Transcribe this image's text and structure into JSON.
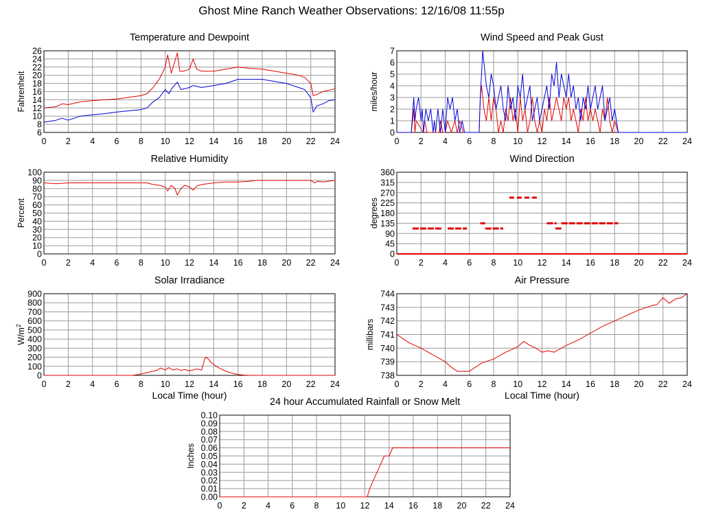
{
  "page_title": "Ghost Mine Ranch Weather Observations: 12/16/08 11:55p",
  "colors": {
    "primary": "#e00000",
    "secondary": "#0000d8",
    "grid": "#9a9a9a",
    "frame": "#000000"
  },
  "chart_data": [
    {
      "id": "temp",
      "type": "line",
      "title": "Temperature and Dewpoint",
      "ylabel": "Fahrenheit",
      "xlabel": "",
      "x_ticks": [
        "0",
        "2",
        "4",
        "6",
        "8",
        "10",
        "12",
        "14",
        "16",
        "18",
        "20",
        "22",
        "24"
      ],
      "y_ticks": [
        "6",
        "8",
        "10",
        "12",
        "14",
        "16",
        "18",
        "20",
        "22",
        "24",
        "26"
      ],
      "xlim": [
        0,
        24
      ],
      "ylim": [
        6,
        26
      ],
      "series": [
        {
          "name": "Temperature",
          "color": "#e00000",
          "x": [
            0,
            1,
            1.5,
            2,
            3,
            4,
            5,
            6,
            7,
            8,
            8.5,
            9,
            9.5,
            10,
            10.2,
            10.5,
            11,
            11.2,
            11.5,
            12,
            12.3,
            12.6,
            13,
            14,
            15,
            16,
            17,
            18,
            19,
            20,
            20.5,
            21,
            21.5,
            22,
            22.2,
            22.5,
            23,
            24
          ],
          "y": [
            12,
            12.3,
            13,
            12.8,
            13.5,
            13.8,
            14,
            14.2,
            14.6,
            15,
            15.5,
            17,
            19,
            22,
            25,
            20.5,
            25.5,
            21,
            21,
            21.5,
            24,
            21.5,
            21,
            21,
            21.5,
            22,
            21.7,
            21.5,
            21,
            20.5,
            20.3,
            20,
            19.5,
            18,
            15,
            15.3,
            16,
            16.7
          ]
        },
        {
          "name": "Dewpoint",
          "color": "#0000d8",
          "x": [
            0,
            1,
            1.5,
            2,
            3,
            4,
            5,
            6,
            7,
            8,
            8.5,
            9,
            9.5,
            10,
            10.3,
            10.6,
            11,
            11.3,
            12,
            12.3,
            13,
            14,
            15,
            16,
            17,
            18,
            19,
            20,
            20.5,
            21,
            21.5,
            22,
            22.2,
            22.5,
            23,
            23.5,
            24
          ],
          "y": [
            8.5,
            9,
            9.5,
            9,
            10,
            10.3,
            10.6,
            11,
            11.3,
            11.6,
            12,
            13.5,
            14.5,
            16.5,
            15.5,
            17,
            18.3,
            16.5,
            17,
            17.5,
            17,
            17.5,
            18,
            19,
            19,
            19,
            18.5,
            18,
            17.5,
            17,
            16.5,
            14.5,
            11,
            12.5,
            13,
            13.8,
            14
          ]
        }
      ]
    },
    {
      "id": "wind",
      "type": "line",
      "title": "Wind Speed and Peak Gust",
      "ylabel": "miles/hour",
      "xlabel": "",
      "x_ticks": [
        "0",
        "2",
        "4",
        "6",
        "8",
        "10",
        "12",
        "14",
        "16",
        "18",
        "20",
        "22",
        "24"
      ],
      "y_ticks": [
        "0",
        "1",
        "2",
        "3",
        "4",
        "5",
        "6",
        "7"
      ],
      "xlim": [
        0,
        24
      ],
      "ylim": [
        0,
        7
      ],
      "series": [
        {
          "name": "Wind Speed",
          "color": "#e00000",
          "x": [
            0,
            1.2,
            1.3,
            1.4,
            1.5,
            1.6,
            2.2,
            2.3,
            2.5,
            3.5,
            3.6,
            3.8,
            4.0,
            4.2,
            4.5,
            4.8,
            5.0,
            5.2,
            5.5,
            6.8,
            6.9,
            7.0,
            7.2,
            7.4,
            7.6,
            7.8,
            8.0,
            8.2,
            8.4,
            8.6,
            8.8,
            9.0,
            9.2,
            9.4,
            9.6,
            9.8,
            10.0,
            10.2,
            10.4,
            10.6,
            10.8,
            11.0,
            11.2,
            11.4,
            11.6,
            11.8,
            12.0,
            12.2,
            12.4,
            12.6,
            12.8,
            13.0,
            13.2,
            13.4,
            13.6,
            13.8,
            14.0,
            14.2,
            14.4,
            14.6,
            14.8,
            15.0,
            15.2,
            15.4,
            15.6,
            15.8,
            16.0,
            16.2,
            16.4,
            16.6,
            16.8,
            17.0,
            17.2,
            17.4,
            17.6,
            17.8,
            18.0,
            18.3,
            24
          ],
          "y": [
            0,
            0,
            1,
            2,
            0,
            1,
            0,
            1,
            0,
            0,
            1,
            0,
            0,
            1,
            0,
            1,
            0,
            1,
            0,
            0,
            3,
            4,
            2,
            1,
            3,
            1,
            3,
            2,
            0,
            1,
            0,
            2,
            1,
            3,
            1,
            2,
            0,
            3,
            1,
            2,
            0,
            1,
            3,
            1,
            0,
            1,
            0,
            2,
            1,
            3,
            1,
            2,
            3,
            2,
            1,
            3,
            2,
            3,
            1,
            2,
            1,
            0,
            2,
            1,
            3,
            1,
            2,
            1,
            2,
            1,
            0,
            2,
            1,
            3,
            1,
            0,
            1,
            0,
            0
          ]
        },
        {
          "name": "Peak Gust",
          "color": "#0000d8",
          "x": [
            0,
            1.2,
            1.4,
            1.5,
            1.6,
            1.8,
            2.0,
            2.1,
            2.2,
            2.3,
            2.4,
            2.6,
            2.8,
            3.0,
            3.1,
            3.2,
            3.4,
            3.6,
            3.8,
            4.0,
            4.2,
            4.4,
            4.6,
            4.8,
            5.0,
            5.2,
            5.4,
            5.6,
            5.8,
            6.8,
            6.9,
            7.0,
            7.1,
            7.2,
            7.4,
            7.6,
            7.8,
            8.0,
            8.2,
            8.4,
            8.6,
            8.8,
            9.0,
            9.2,
            9.4,
            9.6,
            9.8,
            10.0,
            10.2,
            10.4,
            10.6,
            10.8,
            11.0,
            11.2,
            11.4,
            11.6,
            11.8,
            12.0,
            12.2,
            12.4,
            12.6,
            12.8,
            13.0,
            13.2,
            13.4,
            13.6,
            13.8,
            14.0,
            14.2,
            14.4,
            14.6,
            14.8,
            15.0,
            15.2,
            15.4,
            15.6,
            15.8,
            16.0,
            16.2,
            16.4,
            16.6,
            16.8,
            17.0,
            17.2,
            17.4,
            17.6,
            17.8,
            18.0,
            18.3,
            24
          ],
          "y": [
            0,
            0,
            3,
            1,
            2,
            3,
            1,
            2,
            0,
            1,
            2,
            1,
            2,
            0,
            1,
            0,
            2,
            0,
            2,
            0,
            3,
            2,
            3,
            1,
            2,
            0,
            1,
            0,
            0,
            0,
            3,
            5,
            7,
            6,
            4,
            3,
            5,
            4,
            2,
            3,
            4,
            2,
            1,
            4,
            2,
            3,
            1,
            4,
            3,
            5,
            2,
            3,
            4,
            1,
            2,
            3,
            1,
            2,
            3,
            4,
            2,
            5,
            4,
            6,
            3,
            5,
            4,
            3,
            5,
            3,
            4,
            2,
            3,
            1,
            3,
            2,
            4,
            2,
            3,
            4,
            2,
            3,
            4,
            1,
            2,
            3,
            1,
            2,
            0,
            0
          ]
        }
      ]
    },
    {
      "id": "humidity",
      "type": "line",
      "title": "Relative Humidity",
      "ylabel": "Percent",
      "xlabel": "",
      "x_ticks": [
        "0",
        "2",
        "4",
        "6",
        "8",
        "10",
        "12",
        "14",
        "16",
        "18",
        "20",
        "22",
        "24"
      ],
      "y_ticks": [
        "0",
        "10",
        "20",
        "30",
        "40",
        "50",
        "60",
        "70",
        "80",
        "90",
        "100"
      ],
      "xlim": [
        0,
        24
      ],
      "ylim": [
        0,
        100
      ],
      "series": [
        {
          "name": "Relative Humidity",
          "color": "#e00000",
          "x": [
            0,
            1,
            2,
            4,
            6,
            8,
            8.5,
            9,
            9.5,
            10,
            10.2,
            10.5,
            10.8,
            11,
            11.3,
            11.6,
            12,
            12.3,
            12.6,
            13,
            14,
            15,
            16,
            17,
            17.5,
            18,
            20,
            21,
            22,
            22.3,
            22.6,
            23,
            24
          ],
          "y": [
            87,
            86,
            87,
            87,
            87,
            87,
            87,
            85,
            84,
            82,
            77,
            84,
            80,
            72,
            80,
            84,
            82,
            78,
            83,
            85,
            87,
            88,
            88,
            89,
            90,
            90,
            90,
            90,
            90,
            87,
            89,
            88,
            90
          ]
        }
      ]
    },
    {
      "id": "direction",
      "type": "scatter",
      "title": "Wind Direction",
      "ylabel": "degrees",
      "xlabel": "",
      "x_ticks": [
        "0",
        "2",
        "4",
        "6",
        "8",
        "10",
        "12",
        "14",
        "16",
        "18",
        "20",
        "22",
        "24"
      ],
      "y_ticks": [
        "0",
        "45",
        "90",
        "135",
        "180",
        "225",
        "270",
        "315",
        "360"
      ],
      "xlim": [
        0,
        24
      ],
      "ylim": [
        0,
        360
      ],
      "segments": [
        {
          "x1": 0,
          "x2": 24,
          "y": 0
        },
        {
          "x1": 1.3,
          "x2": 3.8,
          "y": 112
        },
        {
          "x1": 4.2,
          "x2": 5.8,
          "y": 112
        },
        {
          "x1": 6.9,
          "x2": 7.3,
          "y": 135
        },
        {
          "x1": 7.3,
          "x2": 8.8,
          "y": 112
        },
        {
          "x1": 9.3,
          "x2": 11.8,
          "y": 248
        },
        {
          "x1": 12.4,
          "x2": 13.2,
          "y": 135
        },
        {
          "x1": 13.1,
          "x2": 13.6,
          "y": 112
        },
        {
          "x1": 13.6,
          "x2": 18.3,
          "y": 135
        }
      ]
    },
    {
      "id": "solar",
      "type": "line",
      "title": "Solar Irradiance",
      "ylabel": "W/m",
      "ylabel_sup": "2",
      "xlabel": "Local Time (hour)",
      "x_ticks": [
        "0",
        "2",
        "4",
        "6",
        "8",
        "10",
        "12",
        "14",
        "16",
        "18",
        "20",
        "22",
        "24"
      ],
      "y_ticks": [
        "0",
        "100",
        "200",
        "300",
        "400",
        "500",
        "600",
        "700",
        "800",
        "900"
      ],
      "xlim": [
        0,
        24
      ],
      "ylim": [
        0,
        900
      ],
      "series": [
        {
          "name": "Solar Irradiance",
          "color": "#e00000",
          "x": [
            0,
            7.3,
            7.8,
            8.3,
            8.8,
            9.3,
            9.6,
            10,
            10.3,
            10.6,
            11,
            11.3,
            11.6,
            12,
            12.3,
            12.6,
            13,
            13.3,
            13.5,
            13.8,
            14.2,
            14.6,
            15,
            15.5,
            16,
            16.5,
            17,
            24
          ],
          "y": [
            0,
            0,
            10,
            25,
            40,
            55,
            80,
            60,
            85,
            60,
            70,
            55,
            65,
            50,
            60,
            70,
            60,
            200,
            190,
            140,
            100,
            70,
            45,
            25,
            10,
            3,
            0,
            0
          ]
        }
      ]
    },
    {
      "id": "pressure",
      "type": "line",
      "title": "Air Pressure",
      "ylabel": "millibars",
      "xlabel": "Local Time (hour)",
      "x_ticks": [
        "0",
        "2",
        "4",
        "6",
        "8",
        "10",
        "12",
        "14",
        "16",
        "18",
        "20",
        "22",
        "24"
      ],
      "y_ticks": [
        "738",
        "739",
        "740",
        "741",
        "742",
        "743",
        "744"
      ],
      "xlim": [
        0,
        24
      ],
      "ylim": [
        738,
        744
      ],
      "series": [
        {
          "name": "Air Pressure",
          "color": "#e00000",
          "x": [
            0,
            0.5,
            1,
            2,
            3,
            4,
            4.5,
            5,
            5.5,
            6,
            6.5,
            7,
            8,
            9,
            10,
            10.5,
            11,
            11.5,
            12,
            12.5,
            13,
            14,
            15,
            16,
            17,
            18,
            19,
            20,
            21,
            21.5,
            22,
            22.5,
            23,
            23.5,
            24
          ],
          "y": [
            741,
            740.7,
            740.4,
            740,
            739.5,
            739,
            738.6,
            738.3,
            738.3,
            738.3,
            738.6,
            738.9,
            739.2,
            739.7,
            740.1,
            740.5,
            740.2,
            740,
            739.7,
            739.8,
            739.7,
            740.2,
            740.6,
            741.1,
            741.6,
            742,
            742.4,
            742.8,
            743.1,
            743.2,
            743.7,
            743.3,
            743.6,
            743.7,
            744
          ]
        }
      ]
    },
    {
      "id": "rain",
      "type": "line",
      "title": "24 hour Accumulated Rainfall or Snow Melt",
      "ylabel": "Inches",
      "xlabel": "",
      "x_ticks": [
        "0",
        "2",
        "4",
        "6",
        "8",
        "10",
        "12",
        "14",
        "16",
        "18",
        "20",
        "22",
        "24"
      ],
      "y_ticks": [
        "0.00",
        "0.01",
        "0.02",
        "0.03",
        "0.04",
        "0.05",
        "0.06",
        "0.07",
        "0.08",
        "0.09",
        "0.10"
      ],
      "xlim": [
        0,
        24
      ],
      "ylim": [
        0,
        0.1
      ],
      "series": [
        {
          "name": "Rainfall",
          "color": "#e00000",
          "x": [
            0,
            12.2,
            12.4,
            12.7,
            13.0,
            13.3,
            13.6,
            14.0,
            14.3,
            14.5,
            24
          ],
          "y": [
            0,
            0,
            0.01,
            0.02,
            0.03,
            0.04,
            0.05,
            0.05,
            0.06,
            0.06,
            0.06
          ]
        }
      ]
    }
  ]
}
